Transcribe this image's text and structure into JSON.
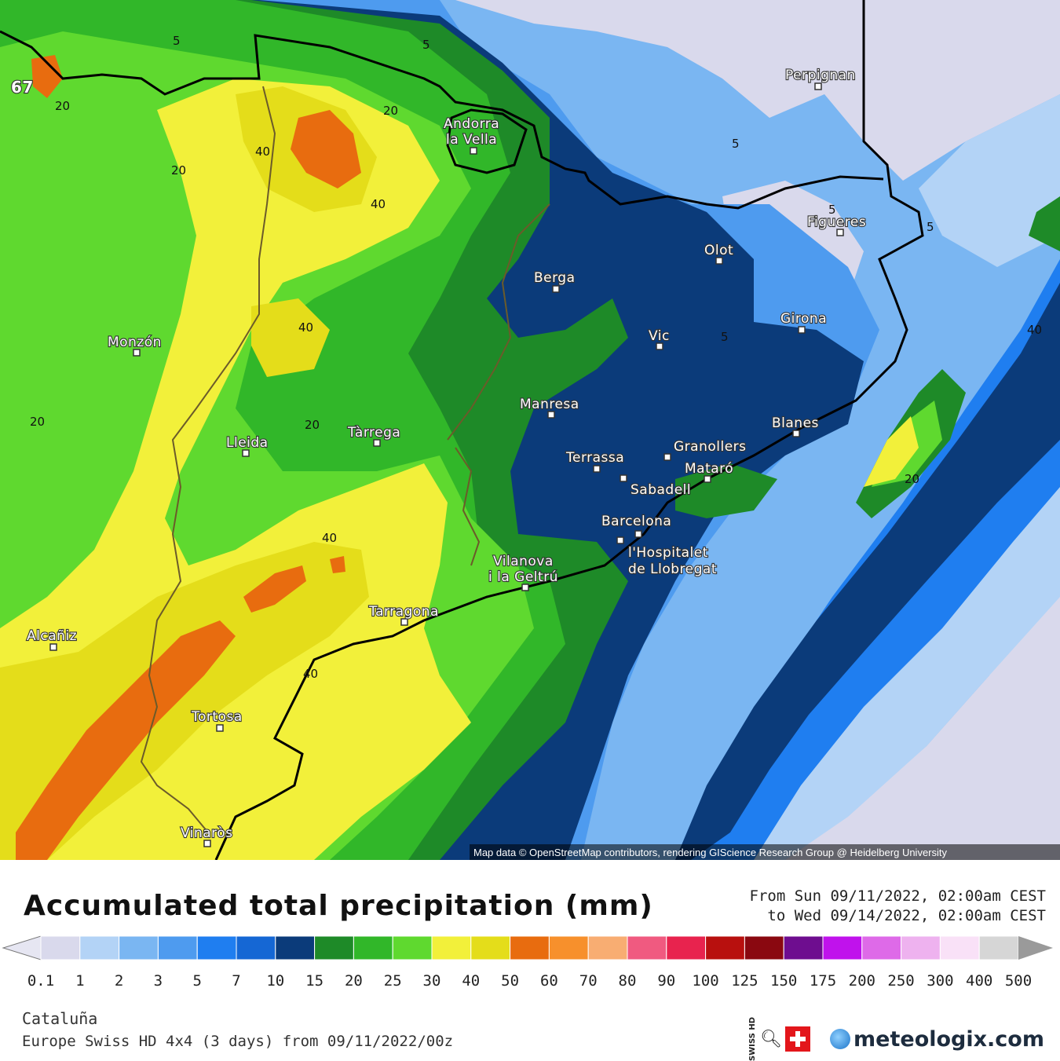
{
  "map": {
    "credit": "Map data © OpenStreetMap contributors, rendering GIScience Research Group @ Heidelberg University",
    "cities": [
      {
        "name": "Perpignan"
      },
      {
        "name": "Andorra la Vella"
      },
      {
        "name": "Figueres"
      },
      {
        "name": "Olot"
      },
      {
        "name": "Berga"
      },
      {
        "name": "Girona"
      },
      {
        "name": "Vic"
      },
      {
        "name": "Monzón"
      },
      {
        "name": "Manresa"
      },
      {
        "name": "Blanes"
      },
      {
        "name": "Tàrrega"
      },
      {
        "name": "Lleida"
      },
      {
        "name": "Granollers"
      },
      {
        "name": "Terrassa"
      },
      {
        "name": "Mataró"
      },
      {
        "name": "Sabadell"
      },
      {
        "name": "Barcelona"
      },
      {
        "name": "l'Hospitalet de Llobregat"
      },
      {
        "name": "Vilanova i la Geltrú"
      },
      {
        "name": "Tarragona"
      },
      {
        "name": "Alcañiz"
      },
      {
        "name": "Tortosa"
      },
      {
        "name": "Vinaròs"
      }
    ],
    "isoline_labels": [
      "5",
      "5",
      "20",
      "20",
      "40",
      "40",
      "40",
      "5",
      "5",
      "20",
      "5",
      "20",
      "20",
      "40",
      "40",
      "40",
      "20",
      "5",
      "67"
    ]
  },
  "legend": {
    "title": "Accumulated total precipitation (mm)",
    "from": "From Sun 09/11/2022, 02:00am CEST",
    "to": "to Wed 09/14/2022, 02:00am CEST",
    "units": "mm",
    "labels": [
      "0.1",
      "1",
      "2",
      "3",
      "5",
      "7",
      "10",
      "15",
      "20",
      "25",
      "30",
      "40",
      "50",
      "60",
      "70",
      "80",
      "90",
      "100",
      "125",
      "150",
      "175",
      "200",
      "250",
      "300",
      "400",
      "500"
    ],
    "colors": [
      "#d9d9ec",
      "#b3d3f6",
      "#7ab6f2",
      "#4e9bef",
      "#1f7ef0",
      "#1567d4",
      "#0b3b7a",
      "#1e8a28",
      "#31b729",
      "#5fd92f",
      "#f2f03a",
      "#e4dd1a",
      "#e86c0f",
      "#f7902c",
      "#f8ad72",
      "#f05a80",
      "#e8234e",
      "#b8100e",
      "#8a0810",
      "#6e0d8f",
      "#c012ec",
      "#de6ae8",
      "#eeb2ef",
      "#f9e1f7",
      "#d6d6d6"
    ],
    "arrow_left_color": "#e6e6f2",
    "arrow_right_color": "#9a9a9a"
  },
  "footer": {
    "region": "Cataluña",
    "model": "Europe Swiss HD 4x4 (3 days) from 09/11/2022/00z",
    "swiss_label": "SWISS HD",
    "site": "meteologix.com"
  }
}
